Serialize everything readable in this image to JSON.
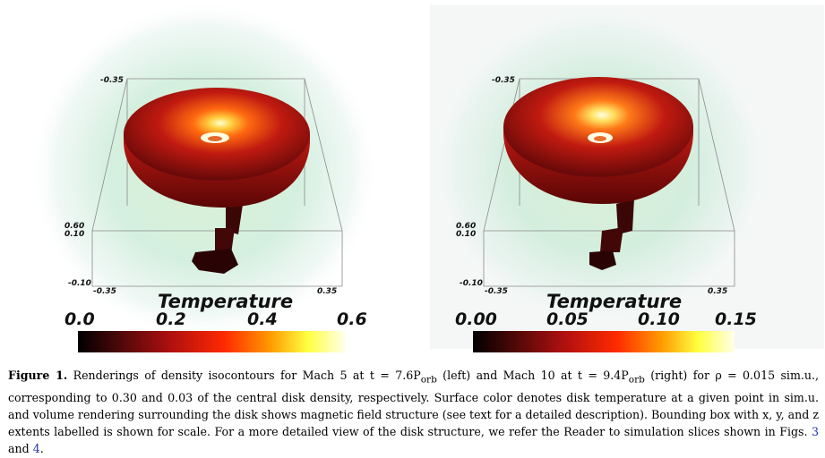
{
  "left_panel": {
    "bbox_labels": {
      "top": "-0.35",
      "y_hi": "0.60",
      "y_lo": "0.10",
      "z_lo": "-0.10",
      "x_right": "0.35",
      "x_left": "-0.35"
    },
    "colorbar": {
      "title": "Temperature",
      "ticks": [
        "0.0",
        "0.2",
        "0.4",
        "0.6"
      ]
    }
  },
  "right_panel": {
    "bbox_labels": {
      "top": "-0.35",
      "y_hi": "0.60",
      "y_lo": "0.10",
      "z_lo": "-0.10",
      "x_right": "0.35",
      "x_left": "-0.35"
    },
    "colorbar": {
      "title": "Temperature",
      "ticks": [
        "0.00",
        "0.05",
        "0.10",
        "0.15"
      ]
    }
  },
  "caption": {
    "label": "Figure 1.",
    "text_1": " Renderings of density isocontours for Mach 5 at t = 7.6P",
    "sub_1": "orb",
    "text_2": " (left) and Mach 10 at t = 9.4P",
    "sub_2": "orb",
    "text_3": " (right) for ρ = 0.015 sim.u., corresponding to 0.30 and 0.03 of the central disk density, respectively. Surface color denotes disk temperature at a given point in sim.u. and volume rendering surrounding the disk shows magnetic field structure (see text for a detailed description). Bounding box with x, y, and z extents labelled is shown for scale. For a more detailed view of the disk structure, we refer the Reader to simulation slices shown in Figs. ",
    "ref_1": "3",
    "text_4": " and ",
    "ref_2": "4",
    "text_5": "."
  },
  "colors": {
    "colormap": [
      "#000000",
      "#5a0a0a",
      "#b01010",
      "#ff2a00",
      "#ff9a00",
      "#ffff40",
      "#ffffe8"
    ],
    "disk_dark": "#4a0808",
    "disk_mid": "#b31a10",
    "disk_light": "#ff6a20",
    "glow": "#bfe8cc"
  }
}
